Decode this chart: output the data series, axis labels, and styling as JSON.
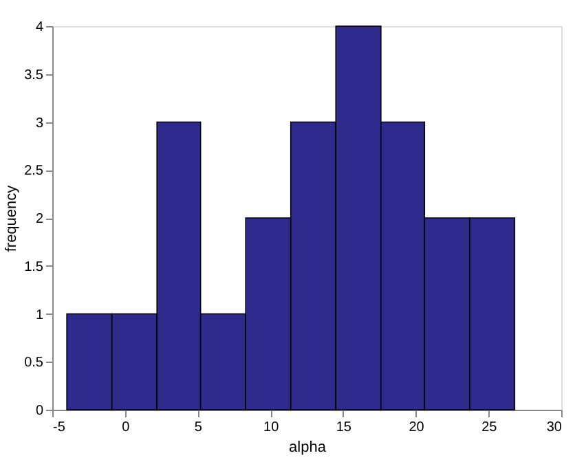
{
  "chart_data": {
    "type": "histogram",
    "xlabel": "alpha",
    "ylabel": "frequency",
    "bins": [
      -4.0,
      -0.9,
      2.2,
      5.2,
      8.3,
      11.4,
      14.5,
      17.6,
      20.6,
      23.7,
      26.8
    ],
    "values": [
      1,
      1,
      3,
      1,
      2,
      3,
      4,
      3,
      2,
      2
    ],
    "color": "#2e2b8c",
    "xlim": [
      -5,
      30
    ],
    "xticks": [
      -5,
      0,
      5,
      10,
      15,
      20,
      25,
      30
    ],
    "ylim": [
      0,
      4
    ],
    "yticks": [
      0,
      0.5,
      1,
      1.5,
      2,
      2.5,
      3,
      3.5,
      4
    ],
    "grid": false
  }
}
